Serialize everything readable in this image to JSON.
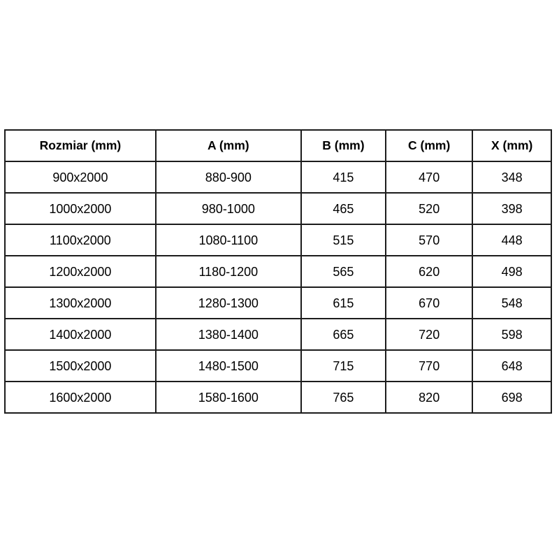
{
  "table": {
    "columns": [
      "Rozmiar (mm)",
      "A (mm)",
      "B (mm)",
      "C (mm)",
      "X (mm)"
    ],
    "rows": [
      [
        "900x2000",
        "880-900",
        "415",
        "470",
        "348"
      ],
      [
        "1000x2000",
        "980-1000",
        "465",
        "520",
        "398"
      ],
      [
        "1100x2000",
        "1080-1100",
        "515",
        "570",
        "448"
      ],
      [
        "1200x2000",
        "1180-1200",
        "565",
        "620",
        "498"
      ],
      [
        "1300x2000",
        "1280-1300",
        "615",
        "670",
        "548"
      ],
      [
        "1400x2000",
        "1380-1400",
        "665",
        "720",
        "598"
      ],
      [
        "1500x2000",
        "1480-1500",
        "715",
        "770",
        "648"
      ],
      [
        "1600x2000",
        "1580-1600",
        "765",
        "820",
        "698"
      ]
    ]
  },
  "colors": {
    "border": "#1c1c1c",
    "text": "#000000",
    "background": "#ffffff"
  }
}
